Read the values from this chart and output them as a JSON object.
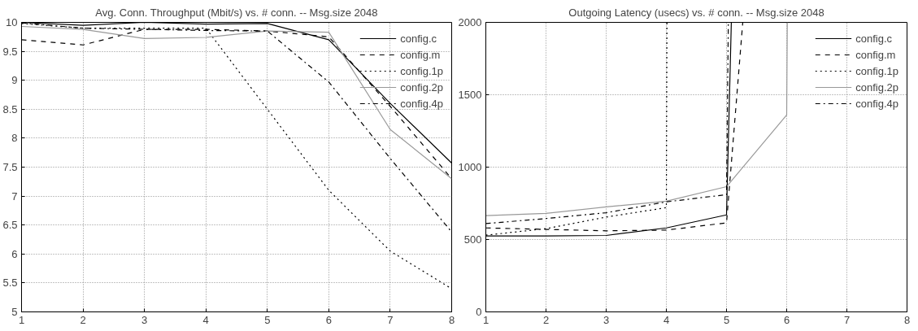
{
  "chart_data": [
    {
      "type": "line",
      "title": "Avg. Conn. Throughput (Mbit/s) vs. # conn. -- Msg.size 2048",
      "x": [
        1,
        2,
        3,
        4,
        5,
        6,
        7,
        8
      ],
      "xlim": [
        1,
        8
      ],
      "xticks": [
        1,
        2,
        3,
        4,
        5,
        6,
        7,
        8
      ],
      "ylim": [
        5,
        10
      ],
      "yticks": [
        5,
        5.5,
        6,
        6.5,
        7,
        7.5,
        8,
        8.5,
        9,
        9.5,
        10
      ],
      "grid": true,
      "legend": "top right",
      "series": [
        {
          "name": "config.c",
          "color": "#000000",
          "line_style": "solid",
          "values": [
            10.0,
            9.95,
            10.0,
            9.97,
            9.98,
            9.7,
            8.6,
            7.57
          ]
        },
        {
          "name": "config.m",
          "color": "#000000",
          "line_style": "dashed",
          "values": [
            9.7,
            9.61,
            9.88,
            9.88,
            9.85,
            9.75,
            8.55,
            7.3
          ]
        },
        {
          "name": "config.1p",
          "color": "#000000",
          "line_style": "dotted",
          "values": [
            9.98,
            9.9,
            9.9,
            9.9,
            8.5,
            7.1,
            6.05,
            5.4
          ]
        },
        {
          "name": "config.2p",
          "color": "#999999",
          "line_style": "solid",
          "values": [
            9.93,
            9.88,
            9.72,
            9.74,
            9.85,
            9.83,
            8.15,
            7.3
          ]
        },
        {
          "name": "config.4p",
          "color": "#000000",
          "line_style": "dashdot",
          "values": [
            9.99,
            9.9,
            9.88,
            9.86,
            9.85,
            8.97,
            7.65,
            6.38
          ]
        }
      ]
    },
    {
      "type": "line",
      "title": "Outgoing Latency (usecs) vs. # conn. -- Msg.size 2048",
      "xlim": [
        1,
        8
      ],
      "xticks": [
        1,
        2,
        3,
        4,
        5,
        6,
        7,
        8
      ],
      "ylim": [
        0,
        2000
      ],
      "yticks": [
        0,
        500,
        1000,
        1500,
        2000
      ],
      "grid": true,
      "legend": "top right",
      "series": [
        {
          "name": "config.c",
          "color": "#000000",
          "line_style": "solid",
          "x": [
            1,
            2,
            3,
            4,
            5,
            5.08
          ],
          "values": [
            525,
            525,
            528,
            580,
            670,
            2000
          ]
        },
        {
          "name": "config.m",
          "color": "#000000",
          "line_style": "dashed",
          "x": [
            1,
            2,
            3,
            4,
            5,
            5.27
          ],
          "values": [
            580,
            570,
            560,
            565,
            615,
            2000
          ]
        },
        {
          "name": "config.1p",
          "color": "#000000",
          "line_style": "dotted",
          "x": [
            1,
            2,
            3,
            4,
            4.01
          ],
          "values": [
            530,
            575,
            655,
            720,
            2000
          ]
        },
        {
          "name": "config.2p",
          "color": "#999999",
          "line_style": "solid",
          "x": [
            1,
            2,
            3,
            4,
            5,
            6,
            6.01
          ],
          "values": [
            665,
            680,
            725,
            765,
            865,
            1360,
            2000
          ]
        },
        {
          "name": "config.4p",
          "color": "#000000",
          "line_style": "dashdot",
          "x": [
            1,
            2,
            3,
            4,
            5,
            5.03
          ],
          "values": [
            610,
            645,
            685,
            760,
            810,
            2000
          ]
        }
      ]
    }
  ]
}
